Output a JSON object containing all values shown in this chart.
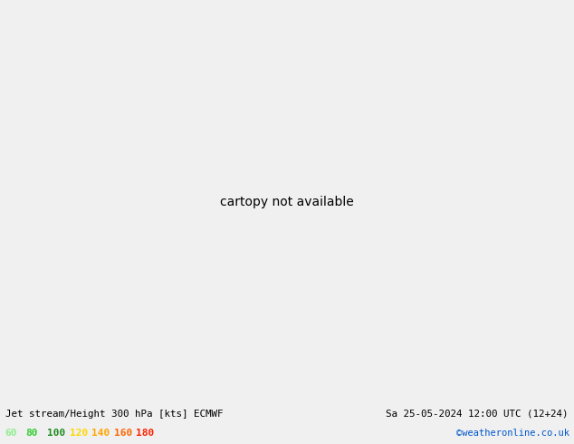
{
  "title_left": "Jet stream/Height 300 hPa [kts] ECMWF",
  "title_right": "Sa 25-05-2024 12:00 UTC (12+24)",
  "credit": "©weatheronline.co.uk",
  "legend_labels": [
    "60",
    "80",
    "100",
    "120",
    "140",
    "160",
    "180"
  ],
  "legend_colors": [
    "#90ee90",
    "#32cd32",
    "#228b22",
    "#ffd700",
    "#ffa500",
    "#ff6600",
    "#ff2200"
  ],
  "bg_color": "#e8e8e8",
  "land_color": "#f0f0f0",
  "ocean_color": "#e0e0e0",
  "bottom_bar_color": "#f0f0f0",
  "figsize": [
    6.34,
    4.9
  ],
  "dpi": 100,
  "extent": [
    4,
    35,
    54,
    72
  ],
  "jet_bands": [
    {
      "level": 60,
      "color": "#c8f0c8"
    },
    {
      "level": 80,
      "color": "#90ee90"
    },
    {
      "level": 100,
      "color": "#50c850"
    },
    {
      "level": 120,
      "color": "#20aa20"
    },
    {
      "level": 140,
      "color": "#008800"
    },
    {
      "level": 160,
      "color": "#006600"
    },
    {
      "level": 180,
      "color": "#004400"
    }
  ],
  "contour_color": "black",
  "coast_color": "#333333",
  "border_color": "#555555"
}
